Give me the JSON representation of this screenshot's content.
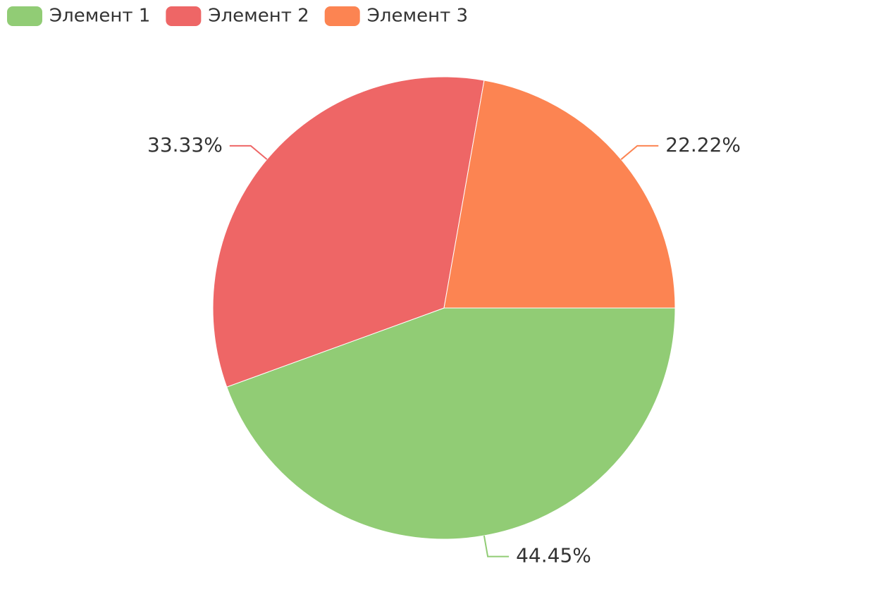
{
  "chart_data": {
    "type": "pie",
    "categories": [
      "Элемент 1",
      "Элемент 2",
      "Элемент 3"
    ],
    "values": [
      44.45,
      33.33,
      22.22
    ],
    "value_labels": [
      "44.45%",
      "33.33%",
      "22.22%"
    ],
    "colors": [
      "#91cc75",
      "#ee6666",
      "#fc8452"
    ],
    "legend": "top-left"
  }
}
